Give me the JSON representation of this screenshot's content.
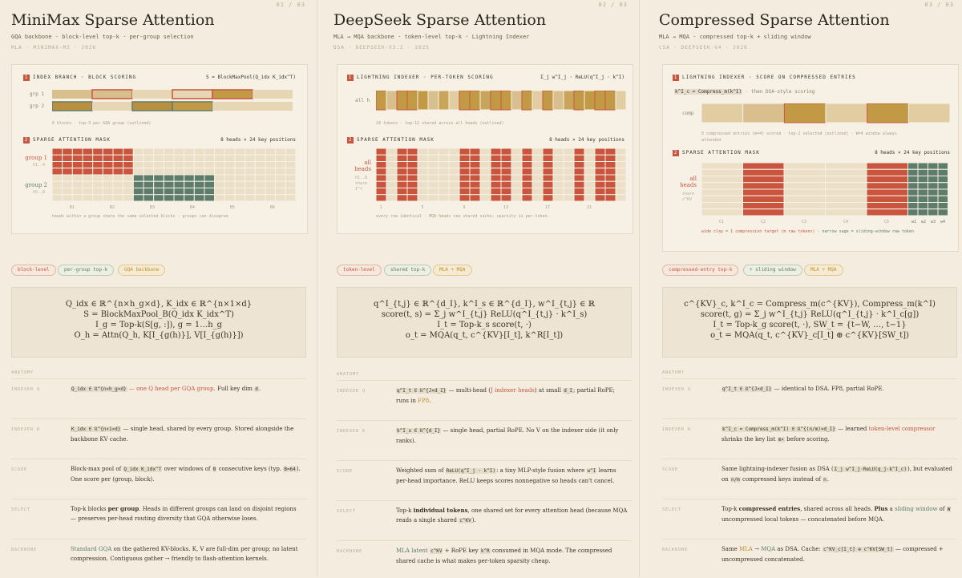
{
  "p1": {
    "page": "01 / 03",
    "title": "MiniMax Sparse Attention",
    "sub": "GQA backbone · block-level top-k · per-group selection",
    "meta": "MLA · MINIMAX-M3 · 2026",
    "sec1": "INDEX BRANCH · BLOCK SCORING",
    "sec1_formula": "S = BlockMaxPool(Q_idx K_idx^T)",
    "row1": "grp 1",
    "row2": "grp 2",
    "cap1": "6 blocks · top-3 per GQA group (outlined)",
    "sec2": "SPARSE ATTENTION MASK",
    "sec2_right": "8 heads × 24 key positions",
    "g1": "group 1",
    "g1s": "h1..4",
    "g2": "group 2",
    "g2s": "h5..8",
    "ticks": [
      "B1",
      "B2",
      "B3",
      "B4",
      "B5",
      "B6"
    ],
    "cap2": "heads within a group share the same selected blocks · groups can disagree",
    "tags": [
      "block-level",
      "per-group top-k",
      "GQA backbone"
    ],
    "f": [
      "Q_idx ∈ ℝ^{n×h_g×d},   K_idx ∈ ℝ^{n×1×d}",
      "S = BlockMaxPool_B(Q_idx K_idx^T)",
      "I_g = Top-k(S[g, :]),   g = 1…h_g",
      "O_h = Attn(Q_h, K[I_{g(h)}], V[I_{g(h)}])"
    ],
    "anat": "ANATOMY",
    "rows": [
      {
        "k": "INDEXER Q",
        "pre": "Q_idx ∈ ℝ^{n×h_g×d}",
        "hl": "— one Q head per GQA group.",
        "post": " Full key dim ",
        "code": "d",
        "end": "."
      },
      {
        "k": "INDEXER K",
        "pre": "K_idx ∈ ℝ^{n×1×d}",
        "text": " — single head, shared by every group. Stored alongside the backbone KV cache."
      },
      {
        "k": "SCORE",
        "text": "Block-max pool of ",
        "code": "Q_idx K_idx^T",
        "text2": " over windows of ",
        "code2": "B",
        "text3": " consecutive keys (typ. ",
        "code3": "B=64",
        "text4": "). One score per (group, block)."
      },
      {
        "k": "SELECT",
        "text": "Top-k blocks ",
        "bold": "per group",
        "text2": ". Heads in different groups can land on disjoint regions — preserves per-head routing diversity that GQA otherwise loses."
      },
      {
        "k": "BACKBONE",
        "hl": "Standard GQA",
        "text": " on the gathered KV-blocks. K, V are full-dim per group; no latent compression. Contiguous gather → friendly to flash-attention kernels."
      }
    ]
  },
  "p2": {
    "page": "02 / 03",
    "title": "DeepSeek Sparse Attention",
    "sub": "MLA → MQA backbone · token-level top-k · Lightning Indexer",
    "meta": "DSA · DEEPSEEK-V3.2 · 2025",
    "sec1": "LIGHTNING INDEXER · PER-TOKEN SCORING",
    "sec1_formula": "Σ_j w^I_j · ReLU(q^I_j · k^I)",
    "row1": "all h",
    "cap1": "24 tokens · top-12 shared across all heads (outlined)",
    "sec2": "SPARSE ATTENTION MASK",
    "sec2_right": "8 heads × 24 key positions",
    "g1": "all",
    "g1b": "heads",
    "g1s": "h1..8",
    "g1s2": "share",
    "g1s3": "I^t",
    "ticks": [
      "1",
      "5",
      "9",
      "13",
      "17",
      "21"
    ],
    "cap2": "every row identical · MQA heads see shared cache; sparsity is per-token",
    "tags": [
      "token-level",
      "shared top-k",
      "MLA + MQA"
    ],
    "f": [
      "q^I_{t,j} ∈ ℝ^{d_I},  k^I_s ∈ ℝ^{d_I},  w^I_{t,j} ∈ ℝ",
      "score(t, s) = Σ_j w^I_{t,j} ReLU(q^I_{t,j} · k^I_s)",
      "I_t = Top-k_s score(t, ·)",
      "o_t = MQA(q_t, c^{KV}[I_t], k^R[I_t])"
    ],
    "anat": "ANATOMY",
    "rows": [
      {
        "k": "INDEXER Q",
        "pre": "q^I_t ∈ ℝ^{J×d_I}",
        "text": " — multi-head (",
        "hl": "J indexer heads",
        "text2": ") at small ",
        "code": "d_I",
        "text3": "; partial RoPE; runs in ",
        "hl2": "FP8",
        "end": "."
      },
      {
        "k": "INDEXER K",
        "pre": "k^I_s ∈ ℝ^{d_I}",
        "text": " — single head, partial RoPE. No V on the indexer side (it only ranks)."
      },
      {
        "k": "SCORE",
        "text": "Weighted sum of ",
        "code": "ReLU(q^I_j · k^I)",
        "text2": ": a tiny MLP-style fusion where ",
        "code2": "w^I",
        "text3": " learns per-head importance. ReLU keeps scores nonnegative so heads can't cancel."
      },
      {
        "k": "SELECT",
        "text": "Top-k ",
        "bold": "individual tokens",
        "text2": ", one shared set for every attention head (because MQA reads a single shared ",
        "code": "c^KV",
        "end": ")."
      },
      {
        "k": "BACKBONE",
        "hl": "MLA latent",
        "code": "c^KV",
        "text": " + RoPE key ",
        "code2": "k^R",
        "text2": " consumed in MQA mode. The compressed shared cache is what makes per-token sparsity cheap."
      }
    ]
  },
  "p3": {
    "page": "03 / 03",
    "title": "Compressed Sparse Attention",
    "sub": "MLA → MQA · compressed top-k + sliding window",
    "meta": "CSA · DEEPSEEK-V4 · 2026",
    "sec1": "LIGHTNING INDEXER · SCORE ON COMPRESSED ENTRIES",
    "kline_code": "k^I_c = Compress_m(k^I)",
    "kline": " · then DSA-style scoring",
    "row1": "comp",
    "cap1": "6 compressed entries (m=4) scored · top-2 selected (outlined) · W=4 window always attended",
    "sec2": "SPARSE ATTENTION MASK",
    "sec2_right": "8 heads × 24 key positions",
    "g1": "all",
    "g1b": "heads",
    "g1s": "share",
    "g1s2": "c^KV",
    "ticks": [
      "C1",
      "C2",
      "C3",
      "C4",
      "C5"
    ],
    "wticks": [
      "w1",
      "w2",
      "w3",
      "w4"
    ],
    "leg1": "wide clay = 1 compression target (m raw tokens)",
    "leg2": "· narrow sage = sliding-window raw token",
    "tags": [
      "compressed-entry top-k",
      "+ sliding window",
      "MLA + MQA"
    ],
    "f": [
      "c^{KV}_c, k^I_c = Compress_m(c^{KV}), Compress_m(k^I)",
      "score(t, g) = Σ_j w^I_{t,j} ReLU(q^I_{t,j} · k^I_c[g])",
      "I_t = Top-k_g score(t, ·),  SW_t = {t−W, …, t−1}",
      "o_t = MQA(q_t, c^{KV}_c[I_t] ⊕ c^{KV}[SW_t])"
    ],
    "anat": "ANATOMY",
    "rows": [
      {
        "k": "INDEXER Q",
        "pre": "q^I_t ∈ ℝ^{J×d_I}",
        "text": " — identical to DSA. FP8, partial RoPE."
      },
      {
        "k": "INDEXER K",
        "pre": "k^I_c = Compress_m(k^I) ∈ ℝ^{(n/m)×d_I}",
        "text": " — learned ",
        "hl": "token-level compressor",
        "text2": " shrinks the key list ",
        "code": "m×",
        "text3": " before scoring."
      },
      {
        "k": "SCORE",
        "text": "Same lightning-indexer fusion as DSA (",
        "code": "Σ_j w^I_j·ReLU(q_j·k^I_c)",
        "text2": "), but evaluated on ",
        "code2": "n/m",
        "text3": " compressed keys instead of ",
        "code3": "n",
        "end": "."
      },
      {
        "k": "SELECT",
        "text": "Top-k ",
        "bold": "compressed entries",
        "text2": ", shared across all heads. ",
        "bold2": "Plus",
        "text3": " a ",
        "hl": "sliding window",
        "text4": " of ",
        "code": "W",
        "text5": " uncompressed local tokens — concatenated before MQA."
      },
      {
        "k": "BACKBONE",
        "text": "Same ",
        "hl": "MLA",
        "text2": " → ",
        "hl2": "MQA",
        "text3": " as DSA. Cache: ",
        "code": "c^KV_c[I_t] ⊕ c^KV[SW_t]",
        "text4": " — compressed + uncompressed concatenated."
      }
    ]
  },
  "colors": {
    "clay": "#c9553f",
    "sage": "#5d7d6a",
    "sand": "#d9bf8d",
    "ochre": "#c29a45",
    "bg": "#f3ecdf"
  }
}
